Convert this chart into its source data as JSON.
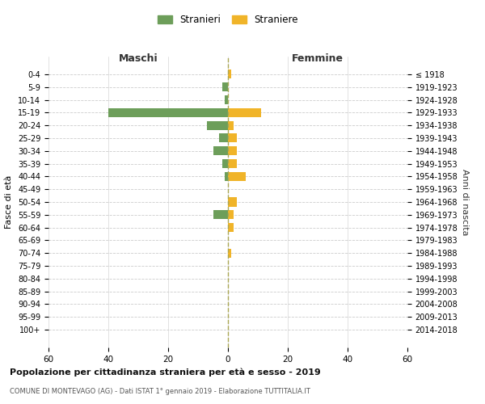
{
  "age_groups": [
    "0-4",
    "5-9",
    "10-14",
    "15-19",
    "20-24",
    "25-29",
    "30-34",
    "35-39",
    "40-44",
    "45-49",
    "50-54",
    "55-59",
    "60-64",
    "65-69",
    "70-74",
    "75-79",
    "80-84",
    "85-89",
    "90-94",
    "95-99",
    "100+"
  ],
  "birth_years": [
    "2014-2018",
    "2009-2013",
    "2004-2008",
    "1999-2003",
    "1994-1998",
    "1989-1993",
    "1984-1988",
    "1979-1983",
    "1974-1978",
    "1969-1973",
    "1964-1968",
    "1959-1963",
    "1954-1958",
    "1949-1953",
    "1944-1948",
    "1939-1943",
    "1934-1938",
    "1929-1933",
    "1924-1928",
    "1919-1923",
    "≤ 1918"
  ],
  "maschi": [
    0,
    2,
    1,
    40,
    7,
    3,
    5,
    2,
    1,
    0,
    0,
    5,
    0,
    0,
    0,
    0,
    0,
    0,
    0,
    0,
    0
  ],
  "femmine": [
    1,
    0,
    0,
    11,
    2,
    3,
    3,
    3,
    6,
    0,
    3,
    2,
    2,
    0,
    1,
    0,
    0,
    0,
    0,
    0,
    0
  ],
  "color_maschi": "#6d9e5a",
  "color_femmine": "#f0b429",
  "title": "Popolazione per cittadinanza straniera per età e sesso - 2019",
  "subtitle": "COMUNE DI MONTEVAGO (AG) - Dati ISTAT 1° gennaio 2019 - Elaborazione TUTTITALIA.IT",
  "xlabel_left": "Maschi",
  "xlabel_right": "Femmine",
  "ylabel_left": "Fasce di età",
  "ylabel_right": "Anni di nascita",
  "legend_maschi": "Stranieri",
  "legend_femmine": "Straniere",
  "xlim": 60,
  "background_color": "#ffffff",
  "grid_color": "#cccccc"
}
